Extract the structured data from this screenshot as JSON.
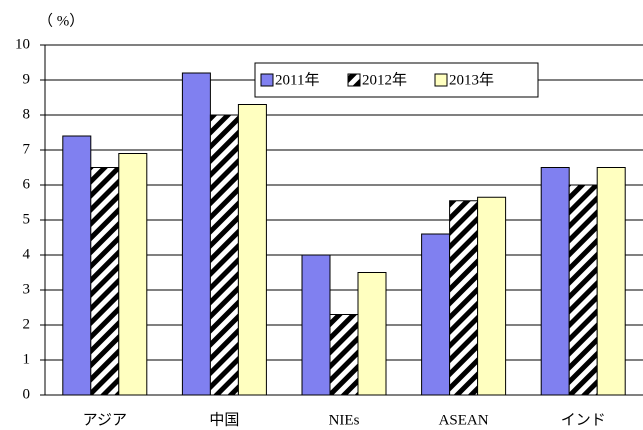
{
  "chart_data": {
    "type": "bar",
    "y_label": "（ %）",
    "categories": [
      "アジア",
      "中国",
      "NIEs",
      "ASEAN",
      "インド"
    ],
    "series": [
      {
        "name": "2011年",
        "color": "#8080f0",
        "values": [
          7.4,
          9.2,
          4.0,
          4.6,
          6.5
        ]
      },
      {
        "name": "2012年",
        "color": "#000000",
        "hatch": true,
        "values": [
          6.5,
          8.0,
          2.3,
          5.55,
          6.0
        ]
      },
      {
        "name": "2013年",
        "color": "#ffffc0",
        "values": [
          6.9,
          8.3,
          3.5,
          5.65,
          6.5
        ]
      }
    ],
    "ylim": [
      0,
      10
    ],
    "yticks": [
      0,
      1,
      2,
      3,
      4,
      5,
      6,
      7,
      8,
      9,
      10
    ],
    "grid": true,
    "legend": "top"
  }
}
